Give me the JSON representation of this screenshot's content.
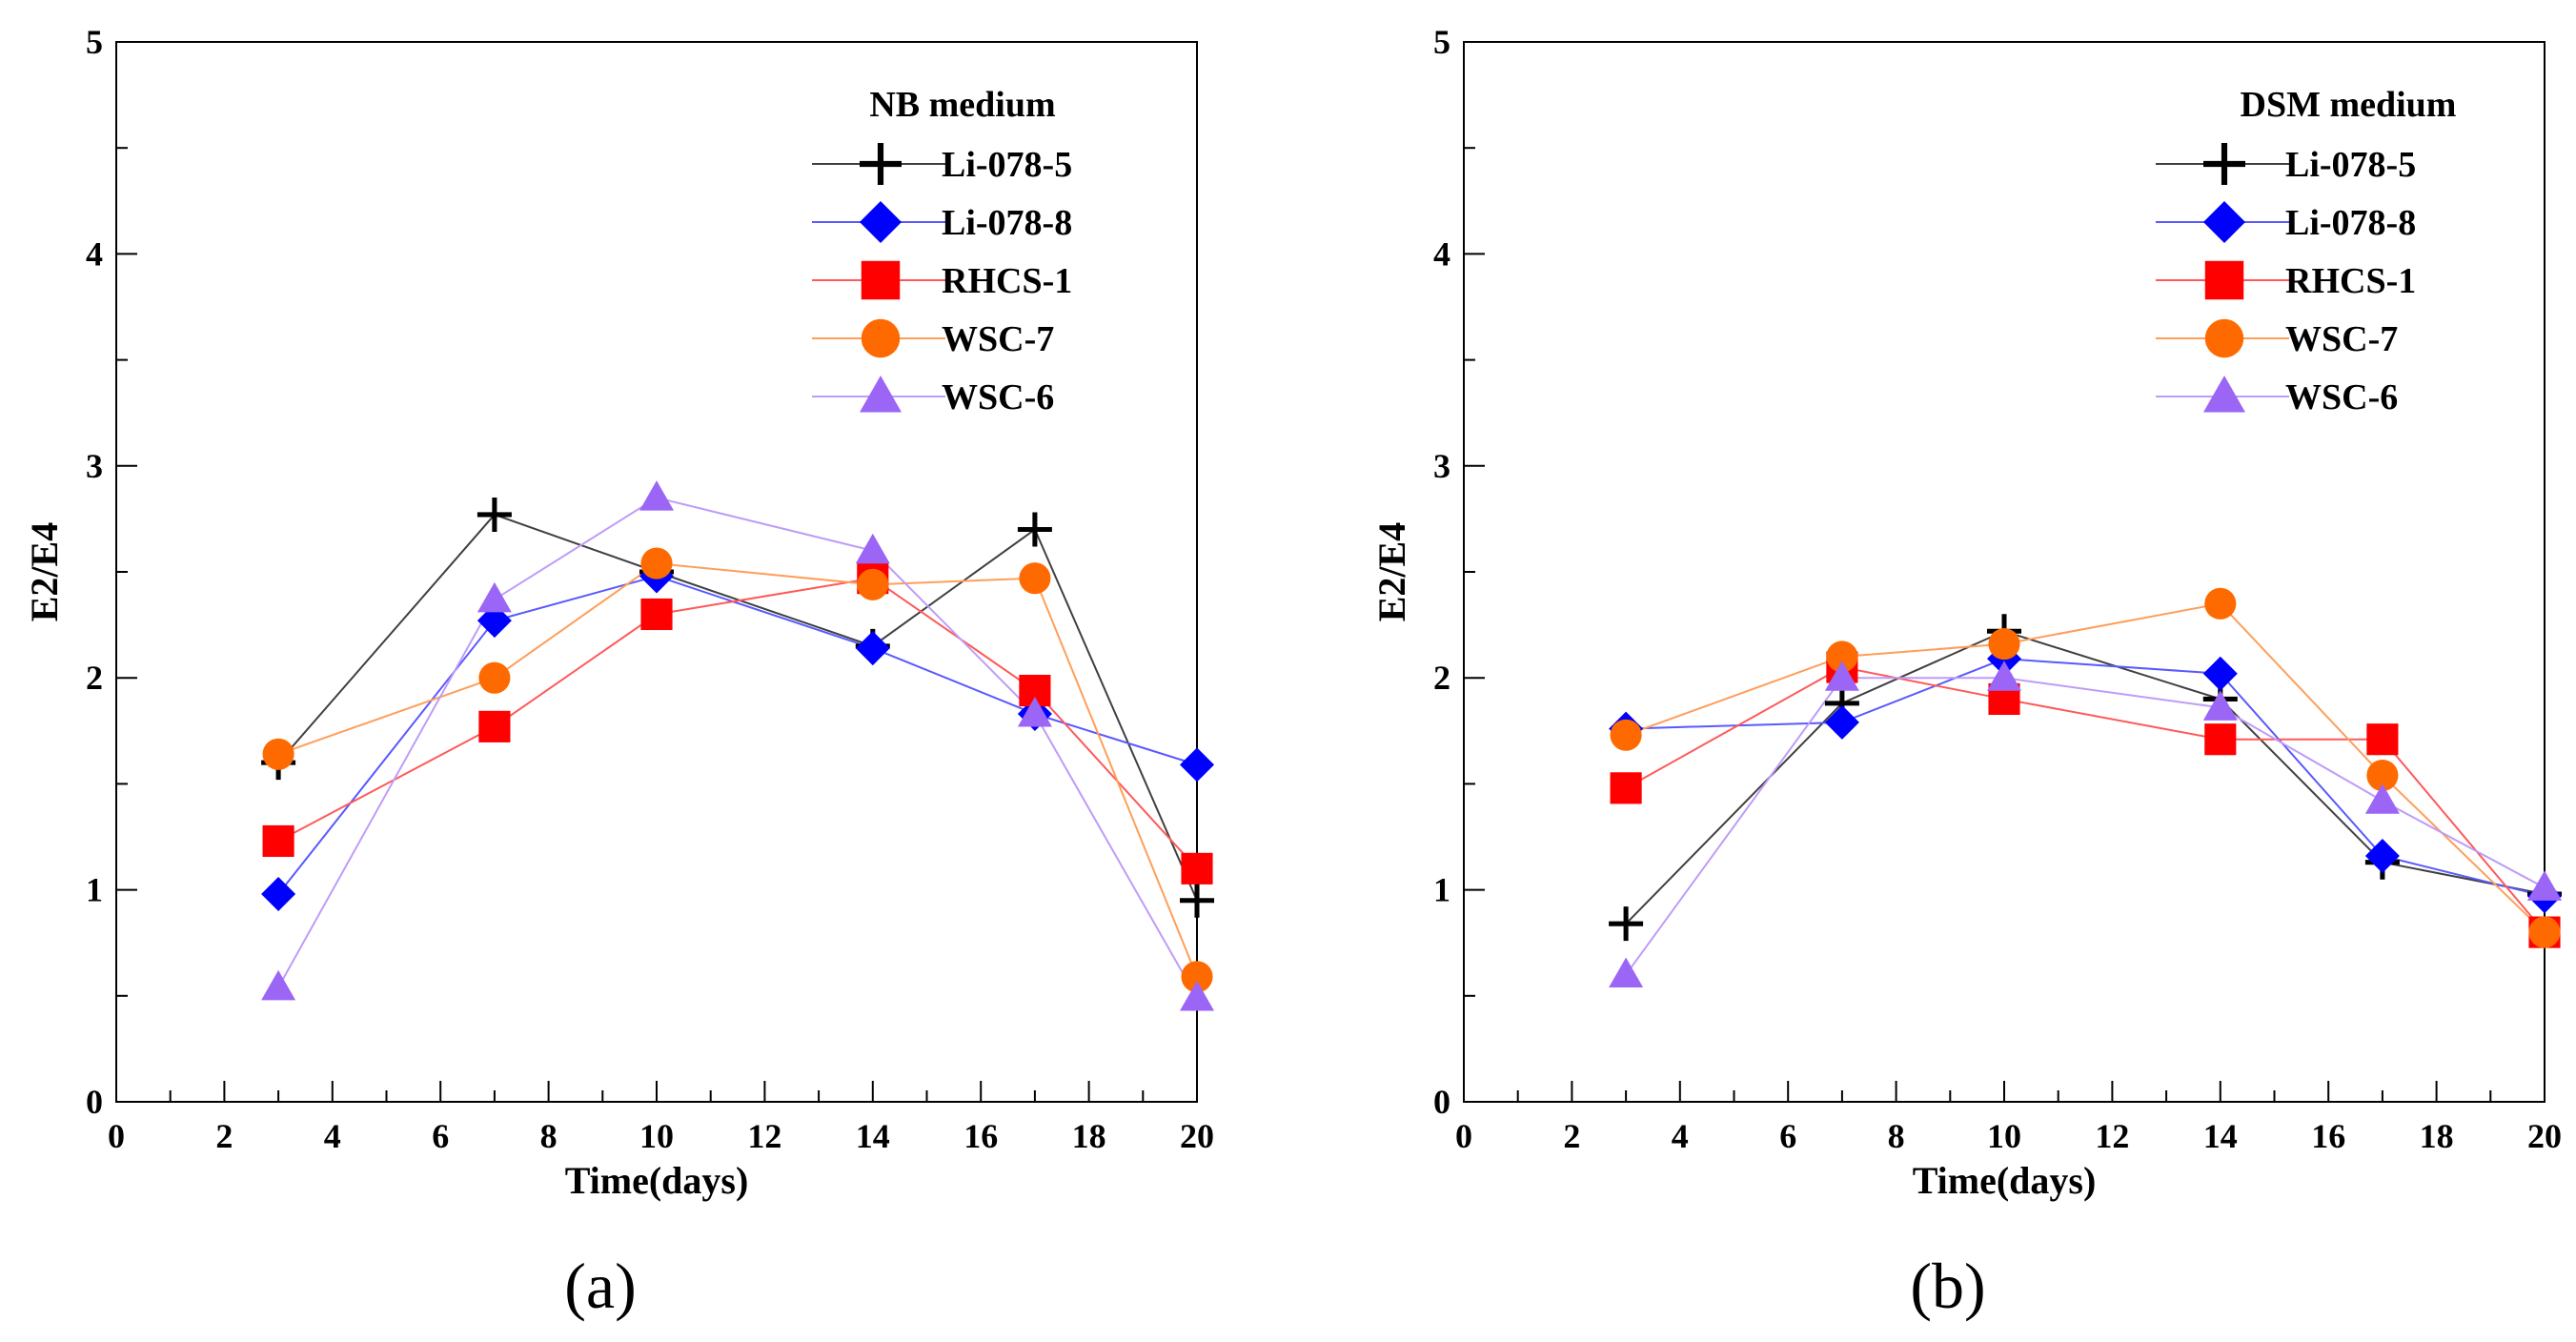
{
  "chart_data": [
    {
      "type": "line",
      "title": "",
      "xlabel": "Time(days)",
      "ylabel": "E2/E4",
      "xlim": [
        0,
        20
      ],
      "ylim": [
        0,
        5
      ],
      "xticks": [
        0,
        2,
        4,
        6,
        8,
        10,
        12,
        14,
        16,
        18,
        20
      ],
      "yticks": [
        0,
        1,
        2,
        3,
        4,
        5
      ],
      "x": [
        3,
        7,
        10,
        14,
        17,
        20
      ],
      "legend_title": "NB medium",
      "legend_position": "top-right",
      "caption": "(a)",
      "series": [
        {
          "name": "Li-078-5",
          "values": [
            1.6,
            2.77,
            2.5,
            2.15,
            2.7,
            0.95
          ],
          "color": "#000000",
          "marker": "plus"
        },
        {
          "name": "Li-078-8",
          "values": [
            0.98,
            2.27,
            2.48,
            2.14,
            1.83,
            1.59
          ],
          "color": "#0000ff",
          "marker": "diamond"
        },
        {
          "name": "RHCS-1",
          "values": [
            1.23,
            1.77,
            2.3,
            2.47,
            1.94,
            1.1
          ],
          "color": "#ff0000",
          "marker": "square"
        },
        {
          "name": "WSC-7",
          "values": [
            1.64,
            2.0,
            2.54,
            2.44,
            2.47,
            0.59
          ],
          "color": "#ff6a00",
          "marker": "circle"
        },
        {
          "name": "WSC-6",
          "values": [
            0.54,
            2.37,
            2.85,
            2.6,
            1.83,
            0.49
          ],
          "color": "#9b66f5",
          "marker": "triangle"
        }
      ]
    },
    {
      "type": "line",
      "title": "",
      "xlabel": "Time(days)",
      "ylabel": "E2/E4",
      "xlim": [
        0,
        20
      ],
      "ylim": [
        0,
        5
      ],
      "xticks": [
        0,
        2,
        4,
        6,
        8,
        10,
        12,
        14,
        16,
        18,
        20
      ],
      "yticks": [
        0,
        1,
        2,
        3,
        4,
        5
      ],
      "x": [
        3,
        7,
        10,
        14,
        17,
        20
      ],
      "legend_title": "DSM medium",
      "legend_position": "top-right",
      "caption": "(b)",
      "series": [
        {
          "name": "Li-078-5",
          "values": [
            0.84,
            1.88,
            2.22,
            1.9,
            1.13,
            0.98
          ],
          "color": "#000000",
          "marker": "plus"
        },
        {
          "name": "Li-078-8",
          "values": [
            1.76,
            1.79,
            2.09,
            2.02,
            1.16,
            0.97
          ],
          "color": "#0000ff",
          "marker": "diamond"
        },
        {
          "name": "RHCS-1",
          "values": [
            1.48,
            2.05,
            1.9,
            1.71,
            1.71,
            0.8
          ],
          "color": "#ff0000",
          "marker": "square"
        },
        {
          "name": "WSC-7",
          "values": [
            1.73,
            2.1,
            2.16,
            2.35,
            1.54,
            0.8
          ],
          "color": "#ff6a00",
          "marker": "circle"
        },
        {
          "name": "WSC-6",
          "values": [
            0.6,
            2.0,
            2.0,
            1.86,
            1.42,
            1.01
          ],
          "color": "#9b66f5",
          "marker": "triangle"
        }
      ]
    }
  ]
}
